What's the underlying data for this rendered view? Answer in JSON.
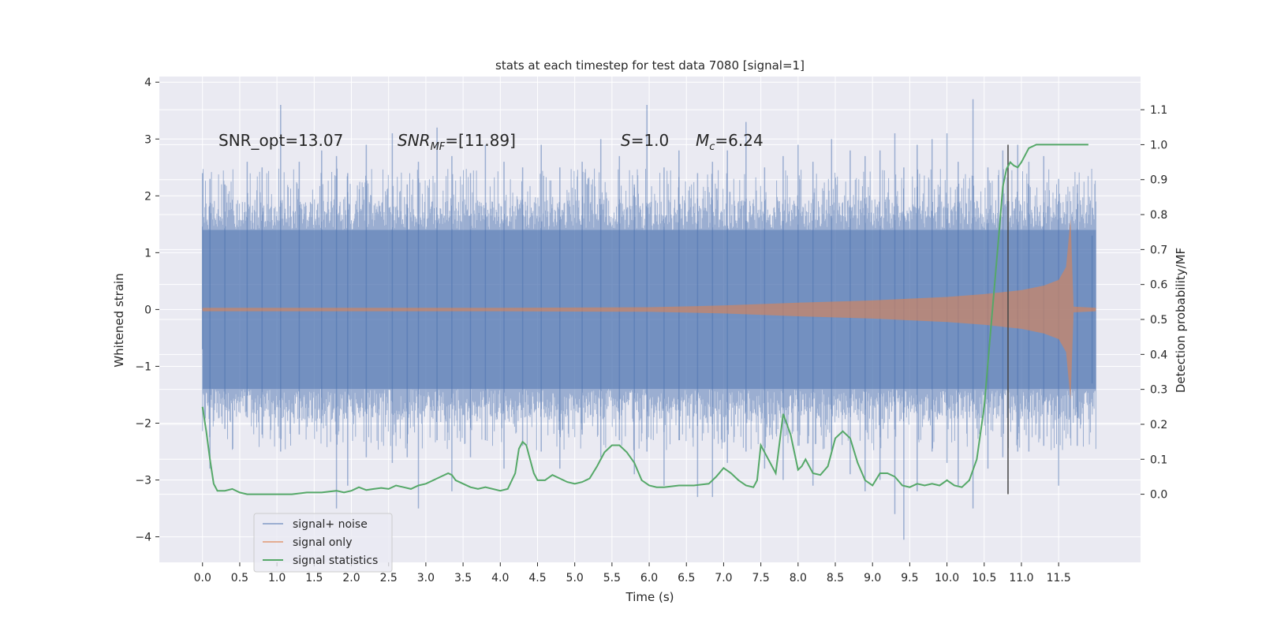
{
  "chart_data": {
    "type": "line",
    "title": "stats at each timestep for test data 7080 [signal=1]",
    "xlabel": "Time (s)",
    "ylabel": "Whitened strain",
    "y2label": "Detection probability/MF",
    "xlim": [
      -0.58,
      12.6
    ],
    "ylim": [
      -4.45,
      4.1
    ],
    "y2lim": [
      -0.195,
      1.195
    ],
    "x_ticks": [
      0.0,
      0.5,
      1.0,
      1.5,
      2.0,
      2.5,
      3.0,
      3.5,
      4.0,
      4.5,
      5.0,
      5.5,
      6.0,
      6.5,
      7.0,
      7.5,
      8.0,
      8.5,
      9.0,
      9.5,
      10.0,
      10.5,
      11.0,
      11.5
    ],
    "x_tick_labels": [
      "0.0",
      "0.5",
      "1.0",
      "1.5",
      "2.0",
      "2.5",
      "3.0",
      "3.5",
      "4.0",
      "4.5",
      "5.0",
      "5.5",
      "6.0",
      "6.5",
      "7.0",
      "7.5",
      "8.0",
      "8.5",
      "9.0",
      "9.5",
      "10.0",
      "10.5",
      "11.0",
      "11.5"
    ],
    "y_ticks": [
      -4,
      -3,
      -2,
      -1,
      0,
      1,
      2,
      3,
      4
    ],
    "y_tick_labels": [
      "−4",
      "−3",
      "−2",
      "−1",
      "0",
      "1",
      "2",
      "3",
      "4"
    ],
    "y2_ticks": [
      0.0,
      0.1,
      0.2,
      0.3,
      0.4,
      0.5,
      0.6,
      0.7,
      0.8,
      0.9,
      1.0,
      1.1
    ],
    "y2_tick_labels": [
      "0.0",
      "0.1",
      "0.2",
      "0.3",
      "0.4",
      "0.5",
      "0.6",
      "0.7",
      "0.8",
      "0.9",
      "1.0",
      "1.1"
    ],
    "grid": true,
    "legend_position": "lower-left",
    "series": [
      {
        "name": "signal+ noise",
        "axis": "left",
        "color": "#4c72b0",
        "opacity": 0.5,
        "x_range": [
          0.0,
          12.0
        ],
        "core_band": [
          -1.4,
          1.4
        ],
        "peaks": [
          [
            0.0,
            2.4,
            -0.7
          ],
          [
            0.1,
            2.3,
            -2.8
          ],
          [
            0.3,
            2.2,
            -2.1
          ],
          [
            0.6,
            2.6,
            -1.9
          ],
          [
            0.8,
            2.5,
            -2.2
          ],
          [
            1.05,
            3.6,
            -2.5
          ],
          [
            1.3,
            2.6,
            -2.2
          ],
          [
            1.6,
            2.8,
            -2.0
          ],
          [
            1.8,
            2.7,
            -3.5
          ],
          [
            1.95,
            2.4,
            -3.1
          ],
          [
            2.2,
            2.9,
            -2.6
          ],
          [
            2.55,
            3.1,
            -2.7
          ],
          [
            2.75,
            2.2,
            -2.6
          ],
          [
            2.9,
            2.6,
            -3.5
          ],
          [
            3.15,
            3.2,
            -2.3
          ],
          [
            3.35,
            2.7,
            -3.2
          ],
          [
            3.6,
            2.4,
            -2.6
          ],
          [
            3.8,
            2.9,
            -2.3
          ],
          [
            4.05,
            2.6,
            -2.8
          ],
          [
            4.3,
            2.5,
            -2.4
          ],
          [
            4.55,
            2.9,
            -2.5
          ],
          [
            4.8,
            2.5,
            -2.8
          ],
          [
            5.1,
            2.6,
            -2.2
          ],
          [
            5.35,
            3.0,
            -2.6
          ],
          [
            5.6,
            2.7,
            -2.3
          ],
          [
            5.8,
            2.2,
            -2.9
          ],
          [
            5.97,
            3.6,
            -2.5
          ],
          [
            6.2,
            2.5,
            -3.1
          ],
          [
            6.4,
            2.8,
            -2.3
          ],
          [
            6.65,
            2.4,
            -3.3
          ],
          [
            6.85,
            2.6,
            -3.3
          ],
          [
            7.05,
            2.8,
            -2.7
          ],
          [
            7.3,
            3.3,
            -2.5
          ],
          [
            7.55,
            2.5,
            -2.8
          ],
          [
            7.8,
            2.7,
            -3.0
          ],
          [
            8.0,
            2.9,
            -2.4
          ],
          [
            8.2,
            2.6,
            -3.1
          ],
          [
            8.45,
            3.0,
            -2.5
          ],
          [
            8.7,
            2.8,
            -2.9
          ],
          [
            8.9,
            2.7,
            -3.2
          ],
          [
            9.1,
            2.8,
            -3.0
          ],
          [
            9.3,
            3.1,
            -3.6
          ],
          [
            9.42,
            2.5,
            -4.05
          ],
          [
            9.6,
            2.9,
            -3.2
          ],
          [
            9.8,
            3.0,
            -2.5
          ],
          [
            10.0,
            3.1,
            -2.7
          ],
          [
            10.15,
            2.6,
            -3.1
          ],
          [
            10.35,
            3.7,
            -3.5
          ],
          [
            10.55,
            2.5,
            -2.8
          ],
          [
            10.75,
            2.8,
            -2.6
          ],
          [
            10.95,
            2.9,
            -2.5
          ],
          [
            11.1,
            2.6,
            -2.5
          ],
          [
            11.3,
            2.7,
            -2.4
          ],
          [
            11.5,
            2.3,
            -3.1
          ],
          [
            11.75,
            2.2,
            -2.4
          ],
          [
            11.95,
            1.3,
            -1.3
          ]
        ]
      },
      {
        "name": "signal only",
        "axis": "left",
        "color": "#dd8452",
        "opacity": 0.6,
        "envelope": [
          [
            0.0,
            0.03
          ],
          [
            4.0,
            0.03
          ],
          [
            6.0,
            0.04
          ],
          [
            7.0,
            0.07
          ],
          [
            8.0,
            0.12
          ],
          [
            9.0,
            0.16
          ],
          [
            10.0,
            0.22
          ],
          [
            10.5,
            0.27
          ],
          [
            11.0,
            0.34
          ],
          [
            11.3,
            0.42
          ],
          [
            11.5,
            0.52
          ],
          [
            11.6,
            0.75
          ],
          [
            11.66,
            1.6
          ],
          [
            11.7,
            0.05
          ],
          [
            12.0,
            0.03
          ]
        ]
      },
      {
        "name": "signal statistics",
        "axis": "right",
        "color": "#55a868",
        "x": [
          0.0,
          0.05,
          0.1,
          0.15,
          0.2,
          0.3,
          0.4,
          0.5,
          0.6,
          0.8,
          1.0,
          1.2,
          1.4,
          1.6,
          1.8,
          1.9,
          2.0,
          2.1,
          2.2,
          2.3,
          2.4,
          2.5,
          2.6,
          2.7,
          2.8,
          2.9,
          3.0,
          3.1,
          3.2,
          3.3,
          3.35,
          3.4,
          3.5,
          3.6,
          3.7,
          3.8,
          4.0,
          4.1,
          4.2,
          4.25,
          4.3,
          4.35,
          4.4,
          4.45,
          4.5,
          4.6,
          4.7,
          4.8,
          4.9,
          5.0,
          5.1,
          5.2,
          5.3,
          5.4,
          5.5,
          5.6,
          5.7,
          5.8,
          5.9,
          6.0,
          6.1,
          6.2,
          6.4,
          6.6,
          6.8,
          6.9,
          7.0,
          7.1,
          7.2,
          7.3,
          7.4,
          7.45,
          7.5,
          7.6,
          7.7,
          7.8,
          7.9,
          8.0,
          8.05,
          8.1,
          8.2,
          8.3,
          8.4,
          8.5,
          8.6,
          8.7,
          8.8,
          8.9,
          9.0,
          9.1,
          9.2,
          9.3,
          9.4,
          9.5,
          9.6,
          9.7,
          9.8,
          9.9,
          10.0,
          10.1,
          10.2,
          10.3,
          10.4,
          10.5,
          10.6,
          10.7,
          10.75,
          10.8,
          10.85,
          10.9,
          10.95,
          11.0,
          11.05,
          11.1,
          11.2,
          11.3,
          11.4,
          11.6,
          11.8,
          11.9
        ],
        "y": [
          0.25,
          0.18,
          0.1,
          0.03,
          0.01,
          0.01,
          0.015,
          0.005,
          0.0,
          0.0,
          0.0,
          0.0,
          0.005,
          0.005,
          0.01,
          0.005,
          0.01,
          0.02,
          0.012,
          0.015,
          0.018,
          0.015,
          0.025,
          0.02,
          0.015,
          0.025,
          0.03,
          0.04,
          0.05,
          0.06,
          0.055,
          0.04,
          0.03,
          0.02,
          0.015,
          0.02,
          0.01,
          0.015,
          0.06,
          0.13,
          0.15,
          0.14,
          0.1,
          0.06,
          0.04,
          0.04,
          0.055,
          0.045,
          0.035,
          0.03,
          0.035,
          0.045,
          0.08,
          0.12,
          0.14,
          0.14,
          0.12,
          0.09,
          0.04,
          0.025,
          0.02,
          0.02,
          0.025,
          0.025,
          0.03,
          0.05,
          0.075,
          0.06,
          0.04,
          0.025,
          0.02,
          0.04,
          0.14,
          0.1,
          0.06,
          0.23,
          0.17,
          0.07,
          0.08,
          0.1,
          0.06,
          0.055,
          0.08,
          0.16,
          0.18,
          0.16,
          0.09,
          0.04,
          0.025,
          0.06,
          0.06,
          0.05,
          0.025,
          0.02,
          0.03,
          0.025,
          0.03,
          0.025,
          0.04,
          0.025,
          0.02,
          0.04,
          0.1,
          0.25,
          0.5,
          0.75,
          0.88,
          0.93,
          0.95,
          0.94,
          0.935,
          0.95,
          0.97,
          0.99,
          1.0,
          1.0,
          1.0,
          1.0,
          1.0,
          1.0
        ]
      }
    ],
    "vline": {
      "x": 10.82,
      "y_range": [
        -3.25,
        2.9
      ],
      "color": "#444444"
    },
    "annotations": [
      {
        "text": "SNR_opt=13.07",
        "x": 0.22,
        "y": 2.85
      },
      {
        "text": "SNR_MF=[11.89]",
        "x": 2.6,
        "y": 2.85
      },
      {
        "text": "S=1.0",
        "x": 5.6,
        "y": 2.85
      },
      {
        "text": "M_c=6.24",
        "x": 6.6,
        "y": 2.85
      }
    ],
    "colors": {
      "plot_bg": "#eaeaf2",
      "grid": "#ffffff",
      "text": "#262626"
    }
  }
}
